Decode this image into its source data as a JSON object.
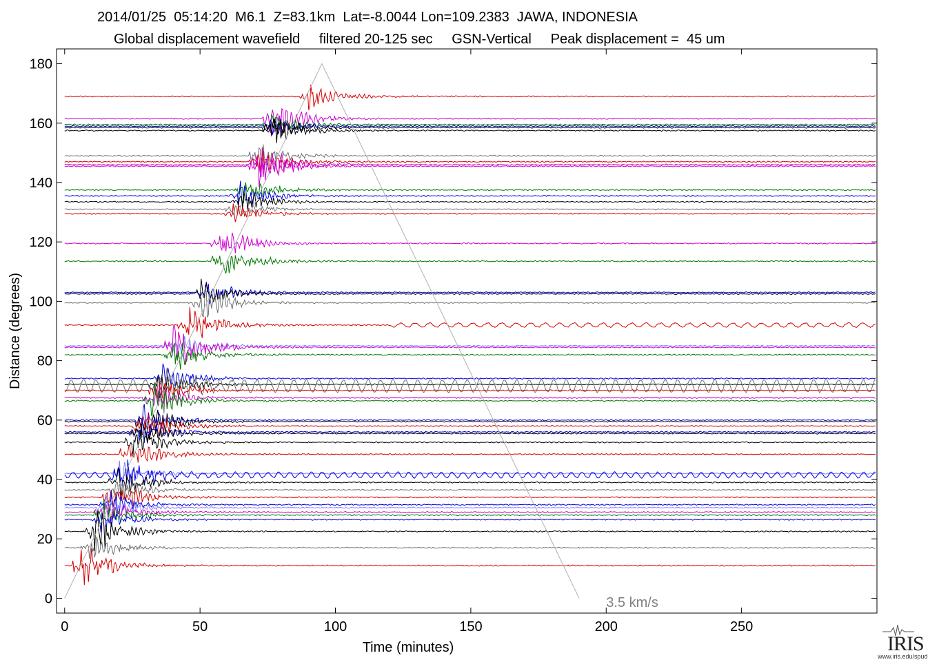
{
  "title_line1": "2014/01/25  05:14:20  M6.1  Z=83.1km  Lat=-8.0044 Lon=109.2383  JAWA, INDONESIA",
  "title_line2": "Global displacement wavefield     filtered 20-125 sec     GSN-Vertical     Peak displacement =  45 um",
  "logo_text": "IRIS",
  "logo_url": "www.iris.edu/spud",
  "chart_data": {
    "type": "line",
    "xlabel": "Time (minutes)",
    "ylabel": "Distance (degrees)",
    "xlim": [
      -3,
      300
    ],
    "ylim": [
      -5,
      185
    ],
    "xticks": [
      0,
      50,
      100,
      150,
      200,
      250
    ],
    "yticks": [
      0,
      20,
      40,
      60,
      80,
      100,
      120,
      140,
      160,
      180
    ],
    "grid": false,
    "annotation": {
      "text": "3.5 km/s",
      "x": 200,
      "y": -2
    },
    "velocity_line": {
      "label": "3.5 km/s",
      "points": [
        [
          0,
          0
        ],
        [
          95,
          180
        ],
        [
          190,
          0
        ]
      ]
    },
    "series_colors": {
      "red": "#d40000",
      "magenta": "#cc00cc",
      "green": "#007a00",
      "blue": "#0000e0",
      "black": "#000000",
      "gray": "#707070",
      "lavender": "#8080ff"
    },
    "traces": [
      {
        "distance": 169,
        "color": "red",
        "arrival": 90,
        "amp": 3
      },
      {
        "distance": 161.5,
        "color": "magenta",
        "arrival": 76,
        "amp": 5
      },
      {
        "distance": 159.5,
        "color": "green",
        "arrival": 76,
        "amp": 3
      },
      {
        "distance": 159,
        "color": "blue",
        "arrival": 76,
        "amp": 2
      },
      {
        "distance": 158.5,
        "color": "black",
        "arrival": 76,
        "amp": 3
      },
      {
        "distance": 157.5,
        "color": "black",
        "arrival": 76,
        "amp": 3
      },
      {
        "distance": 149,
        "color": "gray",
        "arrival": 71,
        "amp": 3
      },
      {
        "distance": 147,
        "color": "red",
        "arrival": 71,
        "amp": 3
      },
      {
        "distance": 146,
        "color": "magenta",
        "arrival": 71,
        "amp": 6
      },
      {
        "distance": 145.5,
        "color": "magenta",
        "arrival": 71,
        "amp": 4
      },
      {
        "distance": 137.5,
        "color": "green",
        "arrival": 66,
        "amp": 3
      },
      {
        "distance": 135.5,
        "color": "blue",
        "arrival": 64,
        "amp": 3
      },
      {
        "distance": 133.5,
        "color": "black",
        "arrival": 64,
        "amp": 3
      },
      {
        "distance": 131,
        "color": "gray",
        "arrival": 62,
        "amp": 2
      },
      {
        "distance": 129.5,
        "color": "red",
        "arrival": 62,
        "amp": 2
      },
      {
        "distance": 119.5,
        "color": "magenta",
        "arrival": 57,
        "amp": 4
      },
      {
        "distance": 113.5,
        "color": "green",
        "arrival": 57,
        "amp": 5
      },
      {
        "distance": 103,
        "color": "blue",
        "arrival": 52,
        "amp": 3
      },
      {
        "distance": 102.5,
        "color": "black",
        "arrival": 50,
        "amp": 3
      },
      {
        "distance": 99.5,
        "color": "gray",
        "arrival": 50,
        "amp": 4
      },
      {
        "distance": 92,
        "color": "red",
        "arrival": 45,
        "amp": 5
      },
      {
        "distance": 85,
        "color": "lavender",
        "arrival": 40,
        "amp": 3
      },
      {
        "distance": 84.5,
        "color": "magenta",
        "arrival": 40,
        "amp": 7
      },
      {
        "distance": 82,
        "color": "green",
        "arrival": 40,
        "amp": 4
      },
      {
        "distance": 74,
        "color": "blue",
        "arrival": 36,
        "amp": 3
      },
      {
        "distance": 72,
        "color": "black",
        "arrival": 34,
        "amp": 3
      },
      {
        "distance": 71.5,
        "color": "gray",
        "arrival": 34,
        "amp": 6
      },
      {
        "distance": 70,
        "color": "red",
        "arrival": 34,
        "amp": 3
      },
      {
        "distance": 67.5,
        "color": "magenta",
        "arrival": 32,
        "amp": 3
      },
      {
        "distance": 66.5,
        "color": "green",
        "arrival": 32,
        "amp": 4
      },
      {
        "distance": 60,
        "color": "blue",
        "arrival": 29,
        "amp": 3
      },
      {
        "distance": 59.5,
        "color": "black",
        "arrival": 29,
        "amp": 4
      },
      {
        "distance": 58,
        "color": "red",
        "arrival": 28,
        "amp": 4
      },
      {
        "distance": 56,
        "color": "blue",
        "arrival": 27,
        "amp": 3
      },
      {
        "distance": 55.5,
        "color": "black",
        "arrival": 27,
        "amp": 3
      },
      {
        "distance": 52.5,
        "color": "black",
        "arrival": 25,
        "amp": 4
      },
      {
        "distance": 48.5,
        "color": "red",
        "arrival": 23,
        "amp": 4
      },
      {
        "distance": 42,
        "color": "lavender",
        "arrival": 20,
        "amp": 3
      },
      {
        "distance": 41.5,
        "color": "blue",
        "arrival": 20,
        "amp": 4
      },
      {
        "distance": 39,
        "color": "black",
        "arrival": 19,
        "amp": 4
      },
      {
        "distance": 36.5,
        "color": "gray",
        "arrival": 18,
        "amp": 3
      },
      {
        "distance": 34,
        "color": "red",
        "arrival": 17,
        "amp": 4
      },
      {
        "distance": 31.5,
        "color": "blue",
        "arrival": 16,
        "amp": 3
      },
      {
        "distance": 30.5,
        "color": "lavender",
        "arrival": 15,
        "amp": 3
      },
      {
        "distance": 29,
        "color": "magenta",
        "arrival": 14,
        "amp": 3
      },
      {
        "distance": 28,
        "color": "green",
        "arrival": 14,
        "amp": 3
      },
      {
        "distance": 26.5,
        "color": "blue",
        "arrival": 13,
        "amp": 3
      },
      {
        "distance": 22.5,
        "color": "black",
        "arrival": 11,
        "amp": 5
      },
      {
        "distance": 17,
        "color": "gray",
        "arrival": 9,
        "amp": 3
      },
      {
        "distance": 11,
        "color": "red",
        "arrival": 6,
        "amp": 5
      }
    ]
  }
}
